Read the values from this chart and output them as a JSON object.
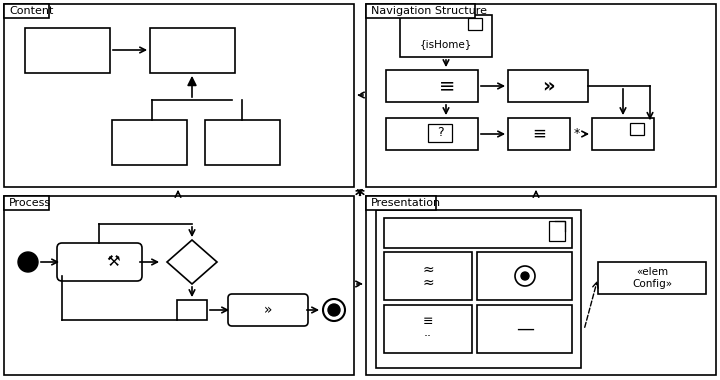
{
  "bg": "#ffffff",
  "lw": 1.2,
  "labels": {
    "content": "Content",
    "navigation": "Navigation Structure",
    "process": "Process",
    "presentation": "Presentation",
    "isHome": "{isHome}",
    "elemConfig": "«elem\nConfig»",
    "star": "*"
  }
}
